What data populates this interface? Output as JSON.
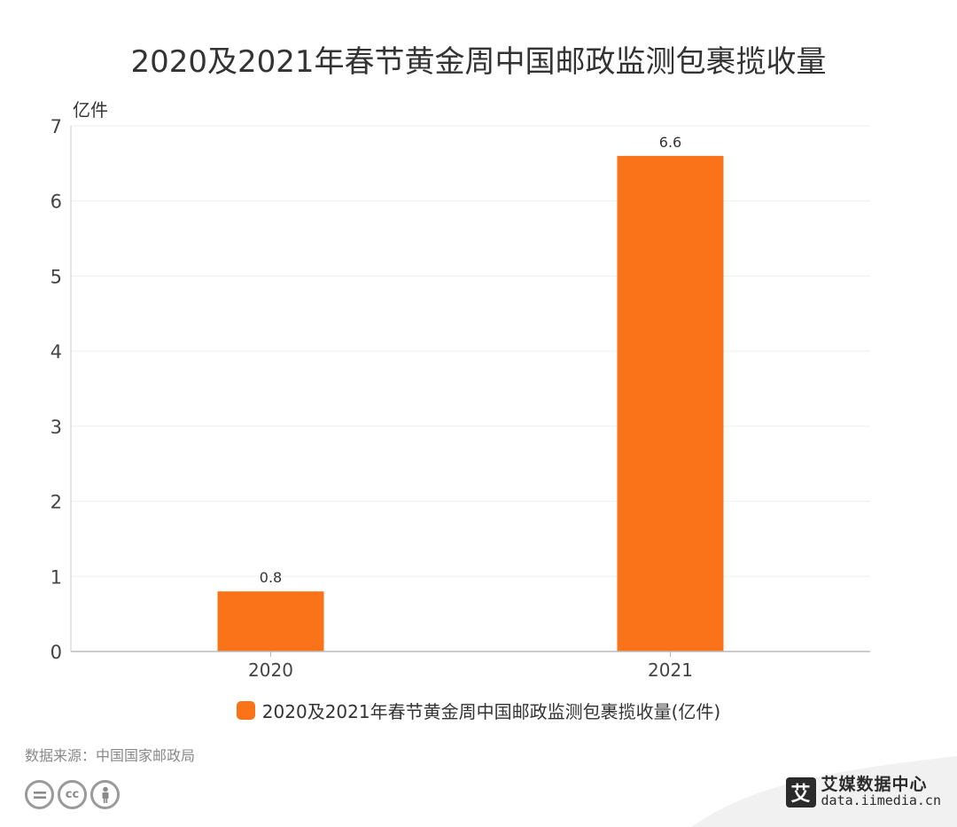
{
  "chart_data": {
    "type": "bar",
    "title": "2020及2021年春节黄金周中国邮政监测包裹揽收量",
    "ylabel": "亿件",
    "categories": [
      "2020",
      "2021"
    ],
    "series": [
      {
        "name": "2020及2021年春节黄金周中国邮政监测包裹揽收量(亿件)",
        "values": [
          0.8,
          6.6
        ],
        "color": "#FA7319"
      }
    ],
    "data_labels": [
      "0.8",
      "6.6"
    ],
    "ylim": [
      0,
      7
    ],
    "yticks": [
      "0",
      "1",
      "2",
      "3",
      "4",
      "5",
      "6",
      "7"
    ],
    "grid": true,
    "legend": "bottom"
  },
  "footer": {
    "source": "数据来源：中国国家邮政局",
    "license_icons": [
      "equals-icon",
      "cc-icon",
      "person-icon"
    ],
    "brand_mark": "艾",
    "brand_name": "艾媒数据中心",
    "brand_url": "data.iimedia.cn"
  }
}
